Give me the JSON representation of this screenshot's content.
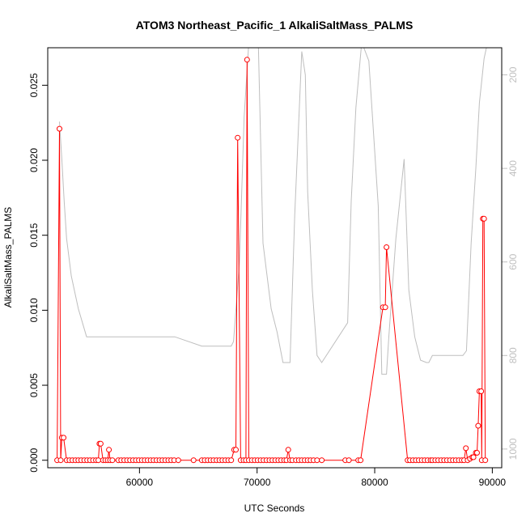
{
  "chart_data": {
    "type": "line",
    "title": "ATOM3 Northeast_Pacific_1 AlkaliSaltMass_PALMS",
    "xlabel": "UTC Seconds",
    "ylabel": "AlkaliSaltMass_PALMS",
    "xlim": [
      52200,
      90800
    ],
    "ylim": [
      -0.0005,
      0.0275
    ],
    "y2lim": [
      1040,
      142
    ],
    "x_ticks": [
      60000,
      70000,
      80000,
      90000
    ],
    "x_tick_labels": [
      "60000",
      "70000",
      "80000",
      "90000"
    ],
    "y_ticks": [
      0.0,
      0.005,
      0.01,
      0.015,
      0.02,
      0.025
    ],
    "y_tick_labels": [
      "0.000",
      "0.005",
      "0.010",
      "0.015",
      "0.020",
      "0.025"
    ],
    "y2_ticks": [
      200,
      400,
      600,
      800,
      1000
    ],
    "y2_tick_labels": [
      "200",
      "400",
      "600",
      "800",
      "1000"
    ],
    "grid": false,
    "colors": {
      "series": "#ff0000",
      "secondary": "#bebebe",
      "frame": "#000000",
      "secondary_axis": "#bfbfbf"
    },
    "series": [
      {
        "values_x": [
          53000,
          53200,
          53300,
          53400,
          53550,
          53800,
          54050,
          54300,
          54550,
          54800,
          55050,
          55300,
          55550,
          55800,
          56050,
          56300,
          56500,
          56600,
          56700,
          56900,
          57100,
          57300,
          57400,
          57500,
          57700,
          58200,
          58450,
          58700,
          58950,
          59200,
          59450,
          59700,
          59950,
          60200,
          60450,
          60700,
          60950,
          61200,
          61450,
          61700,
          61950,
          62200,
          62450,
          62700,
          62950,
          63300,
          64600,
          65300,
          65550,
          65800,
          66050,
          66300,
          66550,
          66800,
          67050,
          67300,
          67550,
          67800,
          68050,
          68200,
          68350,
          68600,
          68850,
          69050,
          69150,
          69300,
          69550,
          69800,
          70050,
          70300,
          70550,
          70800,
          71050,
          71300,
          71550,
          71800,
          72050,
          72300,
          72500,
          72650,
          72800,
          73000,
          73300,
          73550,
          73800,
          74050,
          74300,
          74550,
          74800,
          75100,
          75500,
          77500,
          77800,
          78600,
          78800,
          80700,
          80900,
          81000,
          82800,
          83000,
          83250,
          83500,
          83750,
          84000,
          84250,
          84500,
          84750,
          84900,
          85150,
          85400,
          85650,
          85900,
          86150,
          86400,
          86650,
          86900,
          87150,
          87400,
          87600,
          87750,
          87900,
          88100,
          88300,
          88400,
          88600,
          88700,
          88800,
          88900,
          89050,
          89100,
          89200,
          89300,
          89400
        ],
        "values_y": [
          0.0,
          0.0221,
          0.0,
          0.0015,
          0.0015,
          0.0,
          0.0,
          0.0,
          0.0,
          0.0,
          0.0,
          0.0,
          0.0,
          0.0,
          0.0,
          0.0,
          0.0,
          0.0011,
          0.0011,
          0.0,
          0.0,
          0.0,
          0.0007,
          0.0,
          0.0,
          0.0,
          0.0,
          0.0,
          0.0,
          0.0,
          0.0,
          0.0,
          0.0,
          0.0,
          0.0,
          0.0,
          0.0,
          0.0,
          0.0,
          0.0,
          0.0,
          0.0,
          0.0,
          0.0,
          0.0,
          0.0,
          0.0,
          0.0,
          0.0,
          0.0,
          0.0,
          0.0,
          0.0,
          0.0,
          0.0,
          0.0,
          0.0,
          0.0,
          0.0007,
          0.0007,
          0.0215,
          0.0,
          0.0,
          0.0,
          0.0267,
          0.0,
          0.0,
          0.0,
          0.0,
          0.0,
          0.0,
          0.0,
          0.0,
          0.0,
          0.0,
          0.0,
          0.0,
          0.0,
          0.0,
          0.0007,
          0.0,
          0.0,
          0.0,
          0.0,
          0.0,
          0.0,
          0.0,
          0.0,
          0.0,
          0.0,
          0.0,
          0.0,
          0.0,
          0.0,
          0.0,
          0.0102,
          0.0102,
          0.0142,
          0.0,
          0.0,
          0.0,
          0.0,
          0.0,
          0.0,
          0.0,
          0.0,
          0.0,
          0.0,
          0.0,
          0.0,
          0.0,
          0.0,
          0.0,
          0.0,
          0.0,
          0.0,
          0.0,
          0.0,
          0.0,
          0.0008,
          0.0,
          0.0001,
          0.0002,
          0.0002,
          0.0005,
          0.0005,
          0.0023,
          0.0046,
          0.0046,
          0.0,
          0.0161,
          0.0161,
          0.0
        ]
      },
      {
        "values_x": [
          53200,
          53400,
          53600,
          53800,
          54200,
          54800,
          55500,
          58000,
          60000,
          62000,
          63000,
          65300,
          66500,
          67000,
          67800,
          68000,
          68500,
          68900,
          69300,
          70100,
          70500,
          71200,
          71700,
          72200,
          72500,
          72800,
          73200,
          73800,
          74100,
          74300,
          74700,
          75100,
          75500,
          77700,
          78000,
          78400,
          78900,
          79500,
          80300,
          80600,
          80800,
          80900,
          81000,
          81200,
          81800,
          82500,
          82900,
          83400,
          83900,
          84400,
          84600,
          84900,
          85200,
          86400,
          87500,
          87800,
          88200,
          88600,
          88900,
          89300,
          89600
        ],
        "values_y": [
          300,
          380,
          470,
          550,
          630,
          700,
          760,
          760,
          760,
          760,
          760,
          780,
          780,
          780,
          780,
          770,
          600,
          290,
          130,
          130,
          560,
          700,
          750,
          815,
          815,
          815,
          500,
          150,
          200,
          450,
          660,
          800,
          815,
          730,
          470,
          270,
          130,
          170,
          480,
          840,
          840,
          840,
          840,
          760,
          550,
          380,
          660,
          760,
          810,
          815,
          815,
          800,
          800,
          800,
          800,
          790,
          560,
          400,
          260,
          165,
          130
        ]
      }
    ]
  }
}
